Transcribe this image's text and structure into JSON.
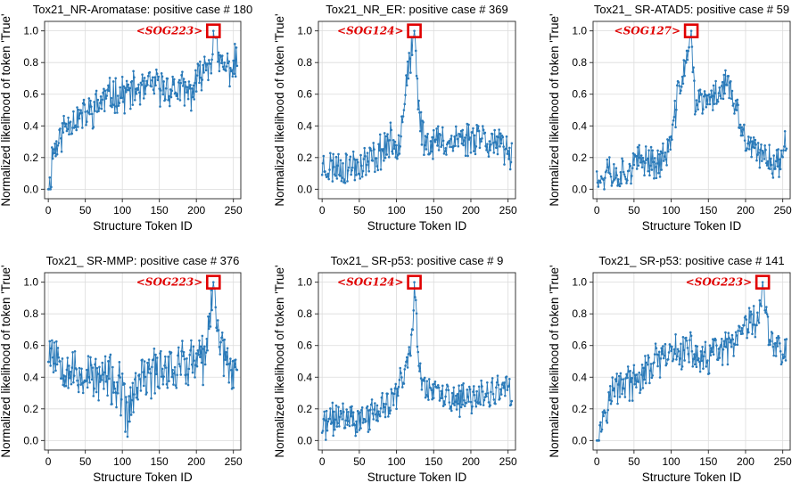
{
  "chart_data": [
    {
      "type": "line",
      "title": "Tox21_NR-Aromatase: positive case # 180",
      "xlabel": "Structure Token ID",
      "ylabel": "Normalized likelihood of token 'True'",
      "xlim": [
        -5,
        260
      ],
      "ylim": [
        -0.06,
        1.06
      ],
      "xticks": [
        0,
        50,
        100,
        150,
        200,
        250
      ],
      "yticks": [
        0.0,
        0.2,
        0.4,
        0.6,
        0.8,
        1.0
      ],
      "highlight": {
        "label": "<SOG223>",
        "token": 223,
        "value": 1.0
      },
      "series": [
        {
          "name": "likelihood",
          "anchors": [
            [
              0,
              0.03
            ],
            [
              3,
              0.0
            ],
            [
              5,
              0.22
            ],
            [
              10,
              0.27
            ],
            [
              15,
              0.3
            ],
            [
              20,
              0.38
            ],
            [
              30,
              0.44
            ],
            [
              40,
              0.45
            ],
            [
              50,
              0.47
            ],
            [
              60,
              0.5
            ],
            [
              70,
              0.55
            ],
            [
              80,
              0.58
            ],
            [
              90,
              0.6
            ],
            [
              100,
              0.6
            ],
            [
              110,
              0.61
            ],
            [
              120,
              0.63
            ],
            [
              130,
              0.62
            ],
            [
              140,
              0.66
            ],
            [
              150,
              0.64
            ],
            [
              160,
              0.64
            ],
            [
              170,
              0.63
            ],
            [
              180,
              0.63
            ],
            [
              190,
              0.6
            ],
            [
              200,
              0.65
            ],
            [
              205,
              0.72
            ],
            [
              210,
              0.78
            ],
            [
              220,
              0.82
            ],
            [
              223,
              1.0
            ],
            [
              230,
              0.8
            ],
            [
              240,
              0.76
            ],
            [
              250,
              0.78
            ],
            [
              255,
              0.81
            ]
          ],
          "noise": 0.1,
          "seed": 11
        }
      ]
    },
    {
      "type": "line",
      "title": "Tox21_NR_ER: positive case # 369",
      "xlabel": "Structure Token ID",
      "ylabel": "Normalized likelihood of token 'True'",
      "xlim": [
        -5,
        260
      ],
      "ylim": [
        -0.06,
        1.06
      ],
      "xticks": [
        0,
        50,
        100,
        150,
        200,
        250
      ],
      "yticks": [
        0.0,
        0.2,
        0.4,
        0.6,
        0.8,
        1.0
      ],
      "highlight": {
        "label": "<SOG124>",
        "token": 124,
        "value": 1.0
      },
      "series": [
        {
          "name": "likelihood",
          "anchors": [
            [
              0,
              0.15
            ],
            [
              10,
              0.14
            ],
            [
              20,
              0.15
            ],
            [
              30,
              0.14
            ],
            [
              40,
              0.15
            ],
            [
              50,
              0.16
            ],
            [
              60,
              0.17
            ],
            [
              70,
              0.2
            ],
            [
              80,
              0.25
            ],
            [
              90,
              0.3
            ],
            [
              100,
              0.28
            ],
            [
              105,
              0.35
            ],
            [
              110,
              0.55
            ],
            [
              115,
              0.75
            ],
            [
              120,
              0.85
            ],
            [
              124,
              1.0
            ],
            [
              130,
              0.5
            ],
            [
              135,
              0.35
            ],
            [
              140,
              0.3
            ],
            [
              150,
              0.3
            ],
            [
              160,
              0.3
            ],
            [
              170,
              0.3
            ],
            [
              180,
              0.32
            ],
            [
              190,
              0.32
            ],
            [
              200,
              0.32
            ],
            [
              210,
              0.36
            ],
            [
              220,
              0.32
            ],
            [
              230,
              0.3
            ],
            [
              240,
              0.26
            ],
            [
              250,
              0.22
            ],
            [
              255,
              0.25
            ]
          ],
          "noise": 0.1,
          "seed": 23
        }
      ]
    },
    {
      "type": "line",
      "title": "Tox21_ SR-ATAD5: positive case # 59",
      "xlabel": "Structure Token ID",
      "ylabel": "Normalized likelihood of token 'True'",
      "xlim": [
        -5,
        260
      ],
      "ylim": [
        -0.06,
        1.06
      ],
      "xticks": [
        0,
        50,
        100,
        150,
        200,
        250
      ],
      "yticks": [
        0.0,
        0.2,
        0.4,
        0.6,
        0.8,
        1.0
      ],
      "highlight": {
        "label": "<SOG127>",
        "token": 127,
        "value": 1.0
      },
      "series": [
        {
          "name": "likelihood",
          "anchors": [
            [
              0,
              0.15
            ],
            [
              5,
              0.05
            ],
            [
              10,
              0.08
            ],
            [
              15,
              0.2
            ],
            [
              20,
              0.08
            ],
            [
              30,
              0.1
            ],
            [
              40,
              0.12
            ],
            [
              50,
              0.15
            ],
            [
              60,
              0.18
            ],
            [
              70,
              0.2
            ],
            [
              80,
              0.15
            ],
            [
              90,
              0.2
            ],
            [
              100,
              0.3
            ],
            [
              105,
              0.45
            ],
            [
              110,
              0.65
            ],
            [
              115,
              0.7
            ],
            [
              120,
              0.8
            ],
            [
              127,
              1.0
            ],
            [
              132,
              0.55
            ],
            [
              140,
              0.55
            ],
            [
              150,
              0.55
            ],
            [
              160,
              0.6
            ],
            [
              170,
              0.65
            ],
            [
              175,
              0.7
            ],
            [
              180,
              0.6
            ],
            [
              190,
              0.45
            ],
            [
              200,
              0.3
            ],
            [
              210,
              0.25
            ],
            [
              220,
              0.2
            ],
            [
              230,
              0.22
            ],
            [
              240,
              0.15
            ],
            [
              250,
              0.2
            ],
            [
              255,
              0.35
            ]
          ],
          "noise": 0.09,
          "seed": 37
        }
      ]
    },
    {
      "type": "line",
      "title": "Tox21_ SR-MMP: positive case # 376",
      "xlabel": "Structure Token ID",
      "ylabel": "Normalized likelihood of token 'True'",
      "xlim": [
        -5,
        260
      ],
      "ylim": [
        -0.06,
        1.06
      ],
      "xticks": [
        0,
        50,
        100,
        150,
        200,
        250
      ],
      "yticks": [
        0.0,
        0.2,
        0.4,
        0.6,
        0.8,
        1.0
      ],
      "highlight": {
        "label": "<SOG223>",
        "token": 223,
        "value": 1.0
      },
      "series": [
        {
          "name": "likelihood",
          "anchors": [
            [
              0,
              0.6
            ],
            [
              10,
              0.55
            ],
            [
              20,
              0.5
            ],
            [
              30,
              0.45
            ],
            [
              40,
              0.4
            ],
            [
              50,
              0.42
            ],
            [
              60,
              0.4
            ],
            [
              70,
              0.38
            ],
            [
              80,
              0.4
            ],
            [
              90,
              0.35
            ],
            [
              100,
              0.3
            ],
            [
              105,
              0.15
            ],
            [
              110,
              0.2
            ],
            [
              120,
              0.35
            ],
            [
              130,
              0.4
            ],
            [
              140,
              0.42
            ],
            [
              150,
              0.45
            ],
            [
              160,
              0.48
            ],
            [
              170,
              0.45
            ],
            [
              180,
              0.5
            ],
            [
              190,
              0.48
            ],
            [
              200,
              0.5
            ],
            [
              210,
              0.5
            ],
            [
              215,
              0.6
            ],
            [
              223,
              1.0
            ],
            [
              230,
              0.7
            ],
            [
              240,
              0.5
            ],
            [
              250,
              0.45
            ],
            [
              255,
              0.45
            ]
          ],
          "noise": 0.14,
          "seed": 53
        }
      ]
    },
    {
      "type": "line",
      "title": "Tox21_ SR-p53: positive case # 9",
      "xlabel": "Structure Token ID",
      "ylabel": "Normalized likelihood of token 'True'",
      "xlim": [
        -5,
        260
      ],
      "ylim": [
        -0.06,
        1.06
      ],
      "xticks": [
        0,
        50,
        100,
        150,
        200,
        250
      ],
      "yticks": [
        0.0,
        0.2,
        0.4,
        0.6,
        0.8,
        1.0
      ],
      "highlight": {
        "label": "<SOG124>",
        "token": 124,
        "value": 1.0
      },
      "series": [
        {
          "name": "likelihood",
          "anchors": [
            [
              0,
              0.08
            ],
            [
              10,
              0.12
            ],
            [
              20,
              0.15
            ],
            [
              30,
              0.15
            ],
            [
              40,
              0.15
            ],
            [
              50,
              0.12
            ],
            [
              60,
              0.15
            ],
            [
              70,
              0.18
            ],
            [
              80,
              0.2
            ],
            [
              90,
              0.22
            ],
            [
              100,
              0.3
            ],
            [
              105,
              0.38
            ],
            [
              110,
              0.4
            ],
            [
              115,
              0.5
            ],
            [
              120,
              0.6
            ],
            [
              124,
              1.0
            ],
            [
              130,
              0.45
            ],
            [
              140,
              0.35
            ],
            [
              150,
              0.3
            ],
            [
              160,
              0.28
            ],
            [
              170,
              0.28
            ],
            [
              180,
              0.25
            ],
            [
              190,
              0.25
            ],
            [
              200,
              0.25
            ],
            [
              210,
              0.3
            ],
            [
              220,
              0.28
            ],
            [
              230,
              0.3
            ],
            [
              240,
              0.3
            ],
            [
              250,
              0.32
            ],
            [
              255,
              0.3
            ]
          ],
          "noise": 0.09,
          "seed": 71
        }
      ]
    },
    {
      "type": "line",
      "title": "Tox21_ SR-p53: positive case # 141",
      "xlabel": "Structure Token ID",
      "ylabel": "Normalized likelihood of token 'True'",
      "xlim": [
        -5,
        260
      ],
      "ylim": [
        -0.06,
        1.06
      ],
      "xticks": [
        0,
        50,
        100,
        150,
        200,
        250
      ],
      "yticks": [
        0.0,
        0.2,
        0.4,
        0.6,
        0.8,
        1.0
      ],
      "highlight": {
        "label": "<SOG223>",
        "token": 223,
        "value": 1.0
      },
      "series": [
        {
          "name": "likelihood",
          "anchors": [
            [
              0,
              0.05
            ],
            [
              3,
              0.02
            ],
            [
              6,
              0.1
            ],
            [
              10,
              0.2
            ],
            [
              20,
              0.3
            ],
            [
              30,
              0.35
            ],
            [
              40,
              0.38
            ],
            [
              50,
              0.35
            ],
            [
              60,
              0.4
            ],
            [
              70,
              0.45
            ],
            [
              80,
              0.5
            ],
            [
              90,
              0.5
            ],
            [
              100,
              0.55
            ],
            [
              110,
              0.55
            ],
            [
              120,
              0.58
            ],
            [
              130,
              0.55
            ],
            [
              140,
              0.5
            ],
            [
              150,
              0.5
            ],
            [
              160,
              0.58
            ],
            [
              170,
              0.55
            ],
            [
              180,
              0.6
            ],
            [
              190,
              0.62
            ],
            [
              200,
              0.7
            ],
            [
              210,
              0.75
            ],
            [
              215,
              0.7
            ],
            [
              223,
              1.0
            ],
            [
              230,
              0.7
            ],
            [
              240,
              0.6
            ],
            [
              250,
              0.55
            ],
            [
              255,
              0.57
            ]
          ],
          "noise": 0.1,
          "seed": 97
        }
      ]
    }
  ]
}
